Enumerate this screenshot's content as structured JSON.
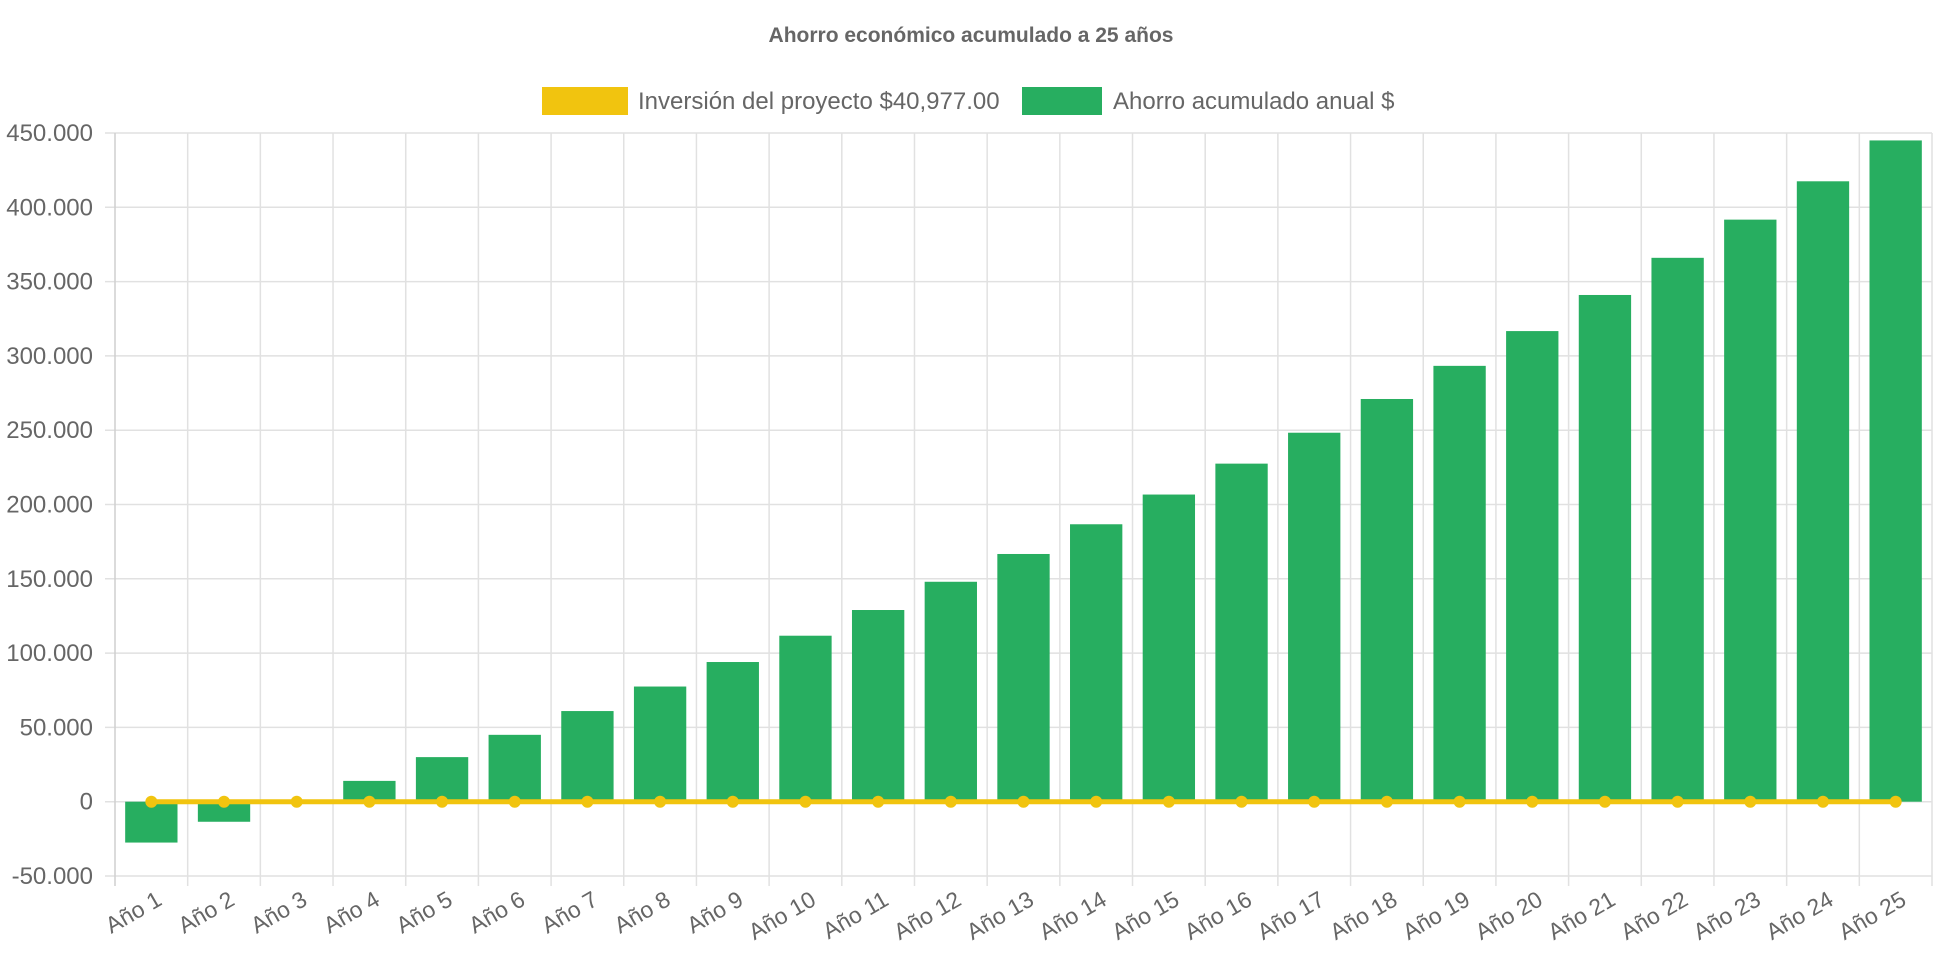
{
  "chart_data": {
    "type": "bar",
    "title": "Ahorro económico acumulado a 25 años",
    "xlabel": "",
    "ylabel": "",
    "ylim": [
      -50000,
      450000
    ],
    "y_ticks": [
      -50000,
      0,
      50000,
      100000,
      150000,
      200000,
      250000,
      300000,
      350000,
      400000,
      450000
    ],
    "y_tick_labels": [
      "-50.000",
      "0",
      "50.000",
      "100.000",
      "150.000",
      "200.000",
      "250.000",
      "300.000",
      "350.000",
      "400.000",
      "450.000"
    ],
    "grid": true,
    "legend_position": "top",
    "categories": [
      "Año 1",
      "Año 2",
      "Año 3",
      "Año 4",
      "Año 5",
      "Año 6",
      "Año 7",
      "Año 8",
      "Año 9",
      "Año 10",
      "Año 11",
      "Año 12",
      "Año 13",
      "Año 14",
      "Año 15",
      "Año 16",
      "Año 17",
      "Año 18",
      "Año 19",
      "Año 20",
      "Año 21",
      "Año 22",
      "Año 23",
      "Año 24",
      "Año 25"
    ],
    "series": [
      {
        "name": "Inversión del proyecto $40,977.00",
        "type": "line",
        "color": "#F1C40F",
        "values": [
          0,
          0,
          0,
          0,
          0,
          0,
          0,
          0,
          0,
          0,
          0,
          0,
          0,
          0,
          0,
          0,
          0,
          0,
          0,
          0,
          0,
          0,
          0,
          0,
          0
        ]
      },
      {
        "name": "Ahorro acumulado anual $",
        "type": "bar",
        "color": "#27AE60",
        "values": [
          -27500,
          -13500,
          0,
          14000,
          30000,
          45000,
          61000,
          77500,
          94000,
          111700,
          129000,
          148000,
          166700,
          186700,
          206700,
          227500,
          248300,
          271000,
          293300,
          316700,
          341000,
          366000,
          391700,
          417500,
          445000
        ]
      }
    ]
  }
}
